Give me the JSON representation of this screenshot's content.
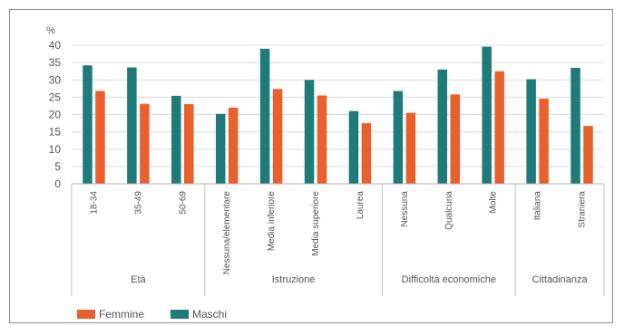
{
  "chart_data": {
    "type": "bar",
    "ylabel": "%",
    "ylim": [
      0,
      40
    ],
    "yticks": [
      0,
      5,
      10,
      15,
      20,
      25,
      30,
      35,
      40
    ],
    "grid": true,
    "legend_position": "bottom-left",
    "categories": [
      "18-34",
      "35-49",
      "50-69",
      "Nessuna/elementare",
      "Media inferiore",
      "Media superiore",
      "Laurea",
      "Nessuna",
      "Qualcuna",
      "Molte",
      "Italiana",
      "Straniera"
    ],
    "groups": [
      {
        "label": "Età",
        "start": 0,
        "count": 3
      },
      {
        "label": "Istruzione",
        "start": 3,
        "count": 4
      },
      {
        "label": "Difficoltà economiche",
        "start": 7,
        "count": 3
      },
      {
        "label": "Cittadinanza",
        "start": 10,
        "count": 2
      }
    ],
    "series": [
      {
        "name": "Maschi",
        "color": "#1f7a7a",
        "values": [
          34.2,
          33.6,
          25.4,
          20.2,
          39.0,
          30.0,
          21.0,
          26.8,
          33.0,
          39.6,
          30.2,
          33.5
        ]
      },
      {
        "name": "Femmine",
        "color": "#e8612c",
        "values": [
          26.8,
          23.1,
          23.0,
          22.0,
          27.4,
          25.5,
          17.5,
          20.5,
          25.8,
          32.5,
          24.6,
          16.7
        ]
      }
    ],
    "legend": [
      "Femmine",
      "Maschi"
    ]
  }
}
